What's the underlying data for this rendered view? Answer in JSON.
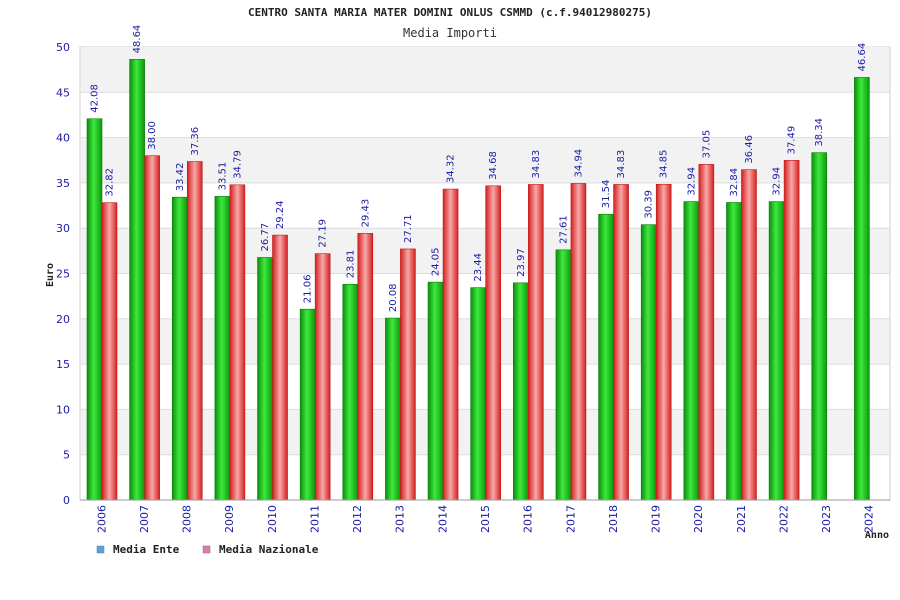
{
  "colors": {
    "ente": "#17c917",
    "nazionale": "#ee3c3c",
    "legend_ente": "#5aa0e6",
    "legend_nazionale": "#e07bb0",
    "band": "#f2f2f2",
    "axis_text": "#1a1aa6"
  },
  "chart_data": {
    "type": "bar",
    "title": "CENTRO SANTA MARIA MATER DOMINI ONLUS CSMMD (c.f.94012980275)",
    "subtitle": "Media Importi",
    "xlabel": "Anno",
    "ylabel": "Euro",
    "ylim": [
      0,
      50
    ],
    "yticks": [
      0,
      5,
      10,
      15,
      20,
      25,
      30,
      35,
      40,
      45,
      50
    ],
    "grid": "horizontal bands",
    "legend_position": "bottom-left",
    "categories": [
      "2006",
      "2007",
      "2008",
      "2009",
      "2010",
      "2011",
      "2012",
      "2013",
      "2014",
      "2015",
      "2016",
      "2017",
      "2018",
      "2019",
      "2020",
      "2021",
      "2022",
      "2023",
      "2024"
    ],
    "series": [
      {
        "name": "Media Ente",
        "values": [
          42.08,
          48.64,
          33.42,
          33.51,
          26.77,
          21.06,
          23.81,
          20.08,
          24.05,
          23.44,
          23.97,
          27.61,
          31.54,
          30.39,
          32.94,
          32.84,
          32.94,
          38.34,
          46.64
        ],
        "labels": [
          "42.08",
          "48.64",
          "33.42",
          "33.51",
          "26.77",
          "21.06",
          "23.81",
          "20.08",
          "24.05",
          "23.44",
          "23.97",
          "27.61",
          "31.54",
          "30.39",
          "32.94",
          "32.84",
          "32.94",
          "38.34",
          "46.64"
        ]
      },
      {
        "name": "Media Nazionale",
        "values": [
          32.82,
          38.0,
          37.36,
          34.79,
          29.24,
          27.19,
          29.43,
          27.71,
          34.32,
          34.68,
          34.83,
          34.94,
          34.83,
          34.85,
          37.05,
          36.46,
          37.49,
          null,
          null
        ],
        "labels": [
          "32.82",
          "38.00",
          "37.36",
          "34.79",
          "29.24",
          "27.19",
          "29.43",
          "27.71",
          "34.32",
          "34.68",
          "34.83",
          "34.94",
          "34.83",
          "34.85",
          "37.05",
          "36.46",
          "37.49",
          null,
          null
        ]
      }
    ]
  }
}
